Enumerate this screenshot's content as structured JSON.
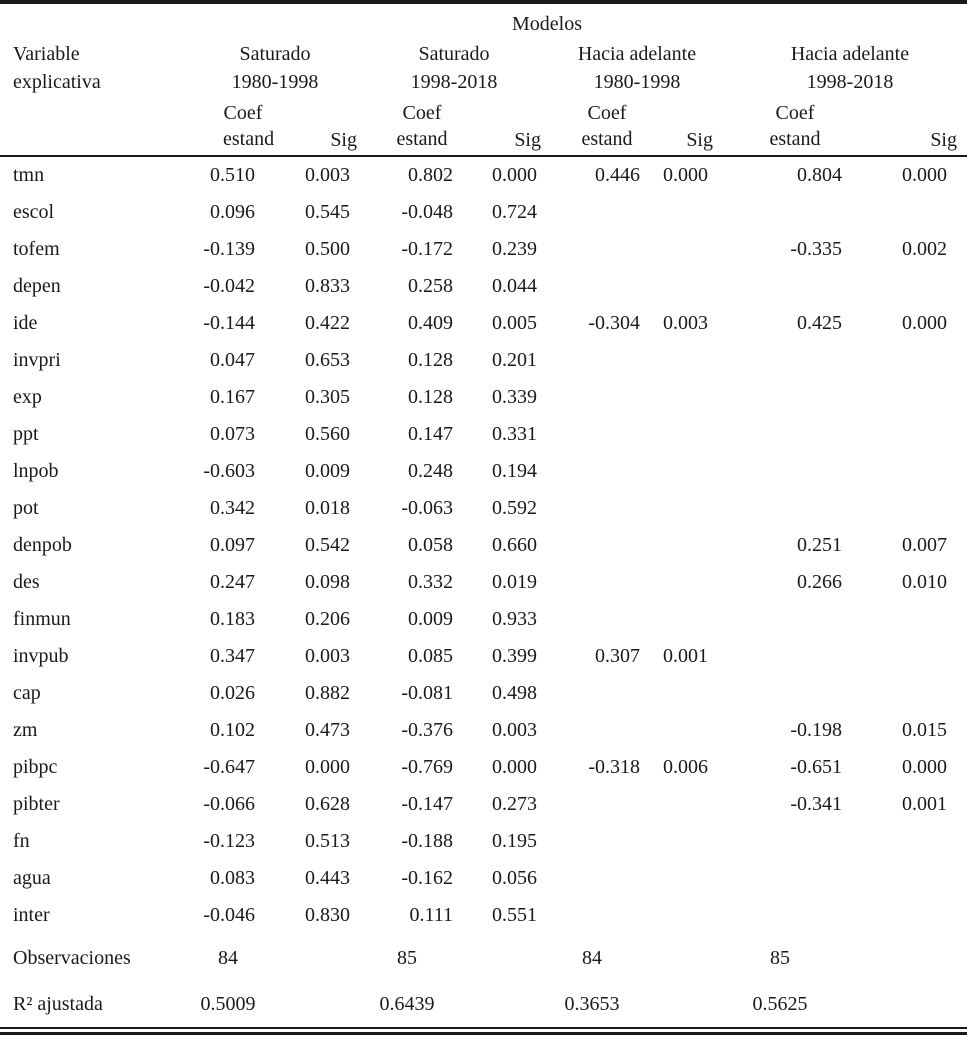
{
  "table": {
    "title": "Modelos",
    "variable_header": {
      "line1": "Variable",
      "line2": "explicativa"
    },
    "groups": [
      {
        "name": "Saturado",
        "period": "1980-1998"
      },
      {
        "name": "Saturado",
        "period": "1998-2018"
      },
      {
        "name": "Hacia adelante",
        "period": "1980-1998"
      },
      {
        "name": "Hacia adelante",
        "period": "1998-2018"
      }
    ],
    "subheader": {
      "coef_line1": "Coef",
      "coef_line2": "estand",
      "sig": "Sig"
    },
    "rows": [
      {
        "variable": "tmn",
        "values": [
          "0.510",
          "0.003",
          "0.802",
          "0.000",
          "0.446",
          "0.000",
          "0.804",
          "0.000"
        ]
      },
      {
        "variable": "escol",
        "values": [
          "0.096",
          "0.545",
          "-0.048",
          "0.724",
          "",
          "",
          "",
          ""
        ]
      },
      {
        "variable": "tofem",
        "values": [
          "-0.139",
          "0.500",
          "-0.172",
          "0.239",
          "",
          "",
          "-0.335",
          "0.002"
        ]
      },
      {
        "variable": "depen",
        "values": [
          "-0.042",
          "0.833",
          "0.258",
          "0.044",
          "",
          "",
          "",
          ""
        ]
      },
      {
        "variable": "ide",
        "values": [
          "-0.144",
          "0.422",
          "0.409",
          "0.005",
          "-0.304",
          "0.003",
          "0.425",
          "0.000"
        ]
      },
      {
        "variable": "invpri",
        "values": [
          "0.047",
          "0.653",
          "0.128",
          "0.201",
          "",
          "",
          "",
          ""
        ]
      },
      {
        "variable": "exp",
        "values": [
          "0.167",
          "0.305",
          "0.128",
          "0.339",
          "",
          "",
          "",
          ""
        ]
      },
      {
        "variable": "ppt",
        "values": [
          "0.073",
          "0.560",
          "0.147",
          "0.331",
          "",
          "",
          "",
          ""
        ]
      },
      {
        "variable": "lnpob",
        "values": [
          "-0.603",
          "0.009",
          "0.248",
          "0.194",
          "",
          "",
          "",
          ""
        ]
      },
      {
        "variable": "pot",
        "values": [
          "0.342",
          "0.018",
          "-0.063",
          "0.592",
          "",
          "",
          "",
          ""
        ]
      },
      {
        "variable": "denpob",
        "values": [
          "0.097",
          "0.542",
          "0.058",
          "0.660",
          "",
          "",
          "0.251",
          "0.007"
        ]
      },
      {
        "variable": "des",
        "values": [
          "0.247",
          "0.098",
          "0.332",
          "0.019",
          "",
          "",
          "0.266",
          "0.010"
        ]
      },
      {
        "variable": "finmun",
        "values": [
          "0.183",
          "0.206",
          "0.009",
          "0.933",
          "",
          "",
          "",
          ""
        ]
      },
      {
        "variable": "invpub",
        "values": [
          "0.347",
          "0.003",
          "0.085",
          "0.399",
          "0.307",
          "0.001",
          "",
          ""
        ]
      },
      {
        "variable": "cap",
        "values": [
          "0.026",
          "0.882",
          "-0.081",
          "0.498",
          "",
          "",
          "",
          ""
        ]
      },
      {
        "variable": "zm",
        "values": [
          "0.102",
          "0.473",
          "-0.376",
          "0.003",
          "",
          "",
          "-0.198",
          "0.015"
        ]
      },
      {
        "variable": "pibpc",
        "values": [
          "-0.647",
          "0.000",
          "-0.769",
          "0.000",
          "-0.318",
          "0.006",
          "-0.651",
          "0.000"
        ]
      },
      {
        "variable": "pibter",
        "values": [
          "-0.066",
          "0.628",
          "-0.147",
          "0.273",
          "",
          "",
          "-0.341",
          "0.001"
        ]
      },
      {
        "variable": "fn",
        "values": [
          "-0.123",
          "0.513",
          "-0.188",
          "0.195",
          "",
          "",
          "",
          ""
        ]
      },
      {
        "variable": "agua",
        "values": [
          "0.083",
          "0.443",
          "-0.162",
          "0.056",
          "",
          "",
          "",
          ""
        ]
      },
      {
        "variable": "inter",
        "values": [
          "-0.046",
          "0.830",
          "0.111",
          "0.551",
          "",
          "",
          "",
          ""
        ]
      }
    ],
    "footer": [
      {
        "label": "Observaciones",
        "values": [
          "84",
          "85",
          "84",
          "85"
        ]
      },
      {
        "label": "R² ajustada",
        "values": [
          "0.5009",
          "0.6439",
          "0.3653",
          "0.5625"
        ]
      }
    ]
  }
}
